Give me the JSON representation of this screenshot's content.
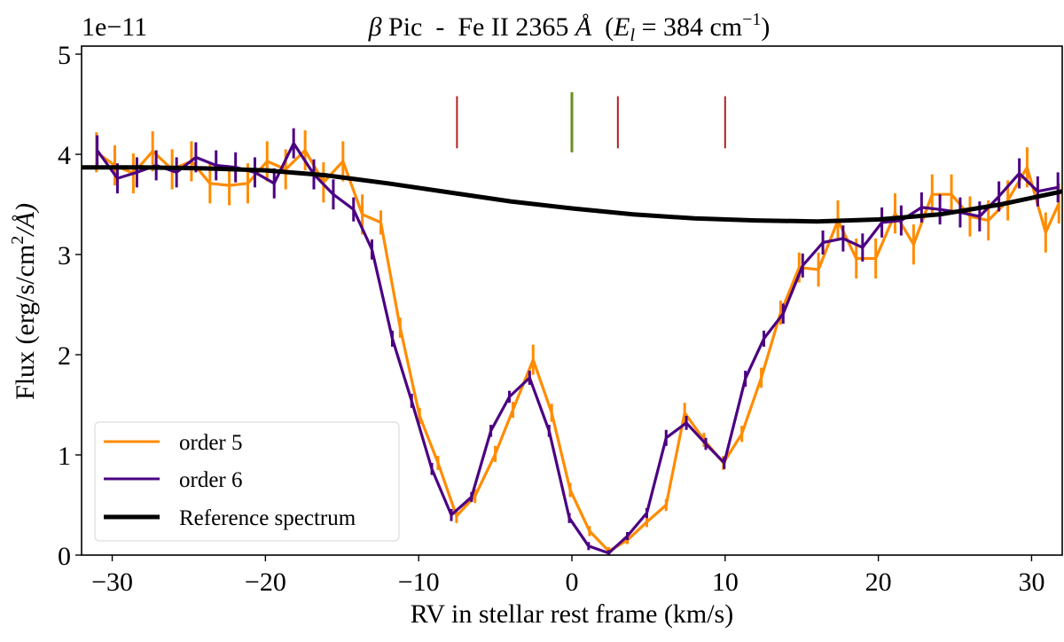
{
  "chart_data": {
    "type": "line",
    "title": "β Pic  -  Fe II 2365 Å  (E_l = 384 cm⁻¹)",
    "title_parts": {
      "beta": "β",
      "main": " Pic  -  Fe II 2365 ",
      "angstrom": "Å",
      "paren_open": "  (",
      "E": "E",
      "l": "l",
      "eq": " = 384 cm",
      "sup": "−1",
      "paren_close": ")"
    },
    "xlabel": "RV in stellar rest frame (km/s)",
    "ylabel": "Flux (erg/s/cm²/Å)",
    "ylabel_parts": {
      "pre": "Flux (erg/s/cm",
      "sup": "2",
      "post": "/Å)"
    },
    "y_offset_label": "1e−11",
    "xlim": [
      -32,
      32
    ],
    "ylim": [
      0,
      5.08
    ],
    "xticks": [
      -30,
      -20,
      -10,
      0,
      10,
      20,
      30
    ],
    "xtick_labels": [
      "−30",
      "−20",
      "−10",
      "0",
      "10",
      "20",
      "30"
    ],
    "yticks": [
      0,
      1,
      2,
      3,
      4,
      5
    ],
    "ytick_labels": [
      "0",
      "1",
      "2",
      "3",
      "4",
      "5"
    ],
    "grid": false,
    "legend_position": "lower-left",
    "series": [
      {
        "name": "order 5",
        "color": "#ff8c00",
        "x": [
          -31.03,
          -29.83,
          -28.62,
          -27.36,
          -26.09,
          -24.83,
          -23.62,
          -22.36,
          -21.15,
          -19.89,
          -18.68,
          -17.41,
          -16.21,
          -14.94,
          -13.68,
          -12.47,
          -11.21,
          -9.94,
          -8.74,
          -7.53,
          -6.32,
          -5.0,
          -3.85,
          -2.53,
          -1.32,
          -0.11,
          1.15,
          2.41,
          3.62,
          4.89,
          6.15,
          7.36,
          8.62,
          9.89,
          11.09,
          12.36,
          13.62,
          14.83,
          16.09,
          17.36,
          18.56,
          19.83,
          21.09,
          22.3,
          23.51,
          24.77,
          25.98,
          27.18,
          28.45,
          29.71,
          30.92,
          31.78
        ],
        "y": [
          4.02,
          3.89,
          3.81,
          4.03,
          3.85,
          3.93,
          3.71,
          3.69,
          3.71,
          3.93,
          3.85,
          4.04,
          3.72,
          3.93,
          3.4,
          3.32,
          2.27,
          1.39,
          0.92,
          0.39,
          0.59,
          1.01,
          1.45,
          1.95,
          1.42,
          0.65,
          0.24,
          0.04,
          0.15,
          0.33,
          0.5,
          1.42,
          1.15,
          0.92,
          1.21,
          1.77,
          2.42,
          2.87,
          2.85,
          3.34,
          2.96,
          2.96,
          3.41,
          3.1,
          3.6,
          3.6,
          3.38,
          3.34,
          3.54,
          3.87,
          3.22,
          3.51
        ],
        "yerr": [
          0.2,
          0.2,
          0.2,
          0.2,
          0.2,
          0.2,
          0.2,
          0.2,
          0.2,
          0.2,
          0.2,
          0.2,
          0.2,
          0.2,
          0.2,
          0.12,
          0.1,
          0.08,
          0.07,
          0.07,
          0.07,
          0.08,
          0.08,
          0.15,
          0.09,
          0.07,
          0.05,
          0.04,
          0.04,
          0.05,
          0.06,
          0.1,
          0.07,
          0.07,
          0.08,
          0.1,
          0.12,
          0.15,
          0.17,
          0.2,
          0.2,
          0.2,
          0.2,
          0.2,
          0.2,
          0.2,
          0.2,
          0.2,
          0.2,
          0.2,
          0.2,
          0.2
        ]
      },
      {
        "name": "order 6",
        "color": "#4b0082",
        "x": [
          -30.98,
          -29.66,
          -28.39,
          -27.13,
          -25.8,
          -24.54,
          -23.22,
          -21.95,
          -20.69,
          -19.43,
          -18.16,
          -16.84,
          -15.57,
          -14.25,
          -13.05,
          -11.72,
          -10.46,
          -9.14,
          -7.87,
          -6.55,
          -5.29,
          -4.08,
          -2.76,
          -1.49,
          -0.17,
          1.09,
          2.41,
          3.62,
          4.89,
          6.15,
          7.47,
          8.74,
          9.94,
          11.32,
          12.53,
          13.79,
          15.06,
          16.38,
          17.7,
          18.97,
          20.23,
          21.49,
          22.82,
          24.02,
          25.34,
          26.61,
          27.87,
          29.2,
          30.4,
          31.72
        ],
        "y": [
          4.04,
          3.76,
          3.82,
          3.89,
          3.82,
          3.97,
          3.89,
          3.87,
          3.82,
          3.71,
          4.11,
          3.8,
          3.6,
          3.45,
          3.05,
          2.16,
          1.54,
          0.86,
          0.4,
          0.58,
          1.24,
          1.58,
          1.77,
          1.24,
          0.37,
          0.09,
          0.02,
          0.19,
          0.42,
          1.17,
          1.32,
          1.11,
          0.92,
          1.76,
          2.16,
          2.41,
          2.89,
          3.12,
          3.16,
          3.07,
          3.32,
          3.34,
          3.47,
          3.45,
          3.42,
          3.38,
          3.58,
          3.81,
          3.63,
          3.67
        ],
        "yerr": [
          0.15,
          0.15,
          0.15,
          0.15,
          0.15,
          0.15,
          0.15,
          0.15,
          0.15,
          0.15,
          0.15,
          0.15,
          0.15,
          0.12,
          0.1,
          0.08,
          0.07,
          0.06,
          0.06,
          0.05,
          0.06,
          0.06,
          0.07,
          0.06,
          0.05,
          0.04,
          0.03,
          0.04,
          0.05,
          0.08,
          0.07,
          0.06,
          0.06,
          0.08,
          0.08,
          0.1,
          0.12,
          0.12,
          0.13,
          0.14,
          0.15,
          0.15,
          0.15,
          0.15,
          0.15,
          0.15,
          0.15,
          0.15,
          0.15,
          0.15
        ]
      },
      {
        "name": "Reference spectrum",
        "color": "#000000",
        "x": [
          -32,
          -28,
          -24,
          -20,
          -16,
          -12,
          -8,
          -4,
          0,
          4,
          8,
          12,
          16,
          20,
          24,
          28,
          32
        ],
        "y": [
          3.87,
          3.87,
          3.86,
          3.84,
          3.79,
          3.71,
          3.62,
          3.53,
          3.46,
          3.4,
          3.36,
          3.34,
          3.33,
          3.35,
          3.4,
          3.5,
          3.63
        ]
      }
    ],
    "markers": [
      {
        "x": -7.5,
        "y_range": [
          4.06,
          4.58
        ],
        "color": "#b22222"
      },
      {
        "x": 0,
        "y_range": [
          4.02,
          4.62
        ],
        "color": "#6b8e23"
      },
      {
        "x": 3,
        "y_range": [
          4.06,
          4.58
        ],
        "color": "#b22222"
      },
      {
        "x": 10,
        "y_range": [
          4.06,
          4.58
        ],
        "color": "#b22222"
      }
    ]
  }
}
